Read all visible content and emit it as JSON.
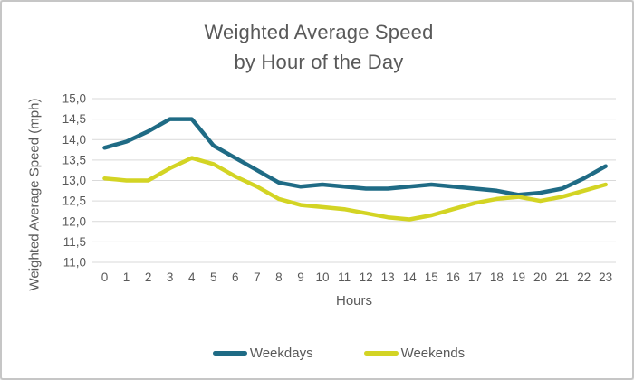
{
  "title": {
    "line1": "Weighted Average Speed",
    "line2": "by Hour of the Day"
  },
  "axes": {
    "y_label": "Weighted Average Speed (mph)",
    "x_label": "Hours",
    "y_tick_labels": [
      "15,0",
      "14,5",
      "14,0",
      "13,5",
      "13,0",
      "12,5",
      "12,0",
      "11,5",
      "11,0"
    ],
    "x_tick_labels": [
      "0",
      "1",
      "2",
      "3",
      "4",
      "5",
      "6",
      "7",
      "8",
      "9",
      "10",
      "11",
      "12",
      "13",
      "14",
      "15",
      "16",
      "17",
      "18",
      "19",
      "20",
      "21",
      "22",
      "23"
    ]
  },
  "legend": {
    "items": [
      {
        "label": "Weekdays",
        "color": "#1f6b85"
      },
      {
        "label": "Weekends",
        "color": "#d3d424"
      }
    ]
  },
  "style": {
    "grid_color": "#d9d9d9",
    "text_color": "#595959",
    "background": "#ffffff",
    "border_color": "#c6c6c6",
    "line_width": 4.5
  },
  "chart_data": {
    "type": "line",
    "title": "Weighted Average Speed by Hour of the Day",
    "xlabel": "Hours",
    "ylabel": "Weighted Average Speed (mph)",
    "x": [
      0,
      1,
      2,
      3,
      4,
      5,
      6,
      7,
      8,
      9,
      10,
      11,
      12,
      13,
      14,
      15,
      16,
      17,
      18,
      19,
      20,
      21,
      22,
      23
    ],
    "ylim": [
      11.0,
      15.0
    ],
    "y_tick_step": 0.5,
    "grid": true,
    "legend_position": "bottom",
    "series": [
      {
        "name": "Weekdays",
        "color": "#1f6b85",
        "values": [
          13.8,
          13.95,
          14.2,
          14.5,
          14.5,
          13.85,
          13.55,
          13.25,
          12.95,
          12.85,
          12.9,
          12.85,
          12.8,
          12.8,
          12.85,
          12.9,
          12.85,
          12.8,
          12.75,
          12.65,
          12.7,
          12.8,
          13.05,
          13.35
        ]
      },
      {
        "name": "Weekends",
        "color": "#d3d424",
        "values": [
          13.05,
          13.0,
          13.0,
          13.3,
          13.55,
          13.4,
          13.1,
          12.85,
          12.55,
          12.4,
          12.35,
          12.3,
          12.2,
          12.1,
          12.05,
          12.15,
          12.3,
          12.45,
          12.55,
          12.6,
          12.5,
          12.6,
          12.75,
          12.9
        ]
      }
    ]
  }
}
